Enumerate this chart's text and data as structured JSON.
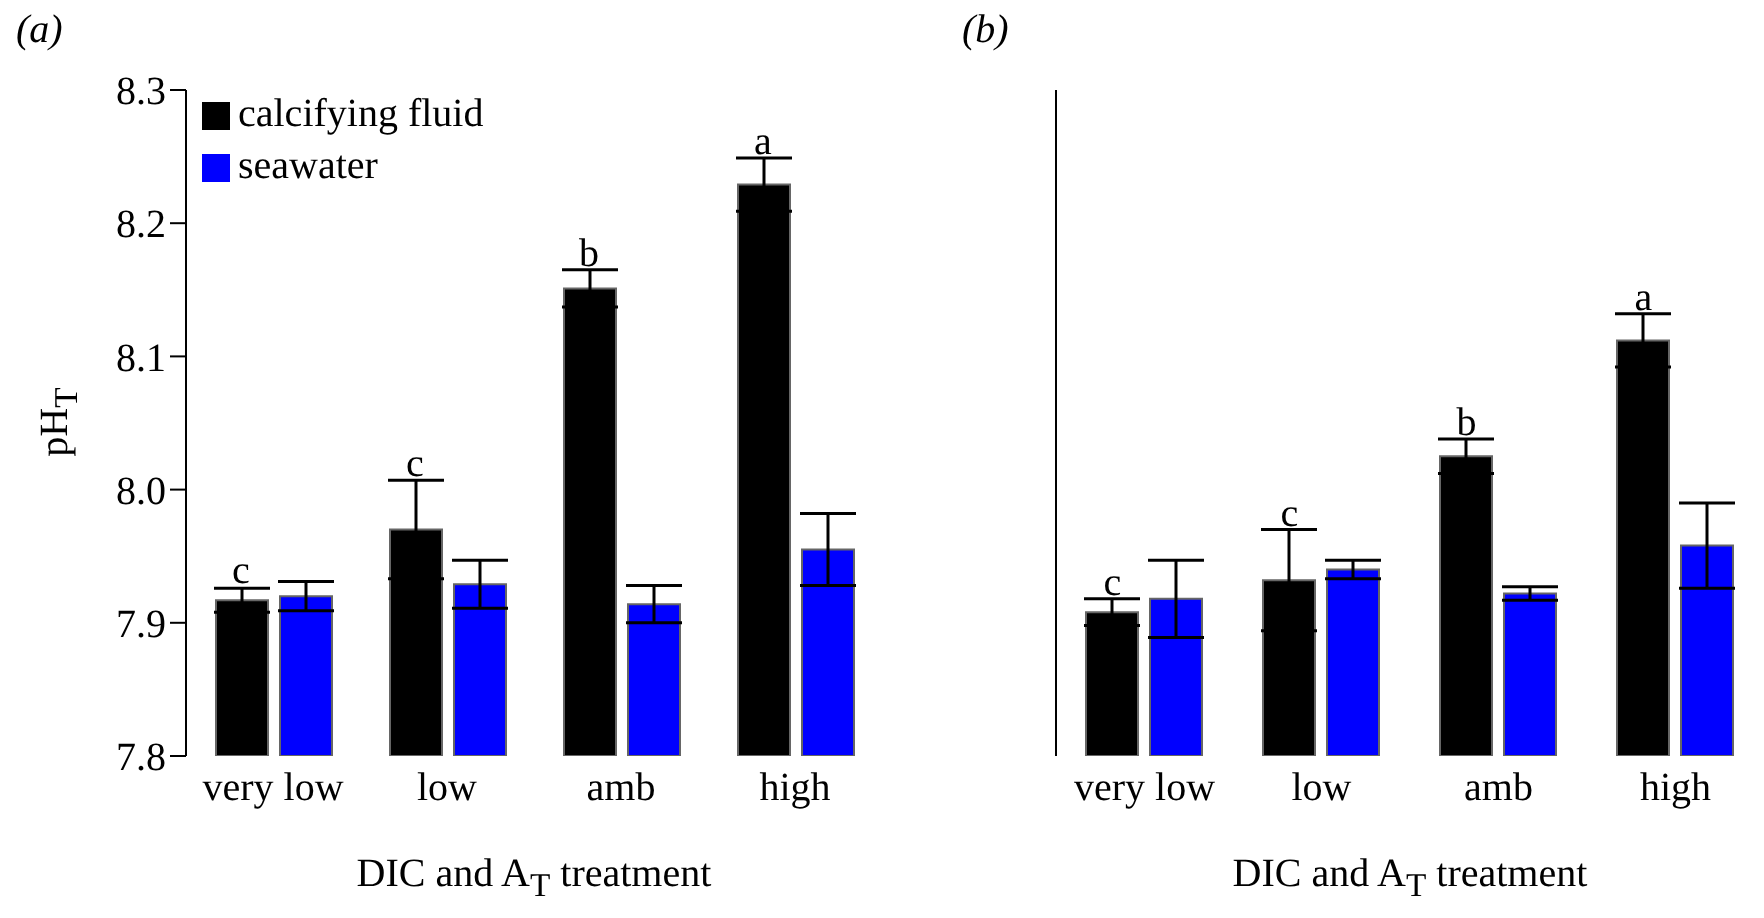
{
  "chart_data": [
    {
      "type": "bar",
      "title": "(a)",
      "xlabel": "DIC and A$_{T}$ treatment",
      "ylabel": "pH$_{T}$",
      "categories": [
        "very low",
        "low",
        "amb",
        "high"
      ],
      "series": [
        {
          "name": "calcifying fluid",
          "color": "#000000",
          "values": [
            7.917,
            7.97,
            8.151,
            8.229
          ],
          "errors": [
            0.009,
            0.037,
            0.014,
            0.02
          ]
        },
        {
          "name": "seawater",
          "color": "#0000ff",
          "values": [
            7.92,
            7.929,
            7.914,
            7.955
          ],
          "errors": [
            0.011,
            0.018,
            0.014,
            0.027
          ]
        }
      ],
      "ylim": [
        7.8,
        8.3
      ],
      "yticks": [
        7.8,
        7.9,
        {
          "value": 8,
          "label": "8.0"
        },
        8.1,
        8.2,
        8.3
      ],
      "annotations": [
        {
          "text": "c",
          "x": "very low",
          "y": 7.93
        },
        {
          "text": "c",
          "x": "low",
          "y": 8.01
        },
        {
          "text": "b",
          "x": "amb",
          "y": 8.168
        },
        {
          "text": "a",
          "x": "high",
          "y": 8.252
        }
      ],
      "grid": false,
      "legend": "top left"
    },
    {
      "type": "bar",
      "title": "(b)",
      "xlabel": "DIC and A$_{T}$ treatment",
      "categories": [
        "very low",
        "low",
        "amb",
        "high"
      ],
      "series": [
        {
          "color": "#000000",
          "values": [
            7.908,
            7.932,
            8.025,
            8.112
          ],
          "errors": [
            0.01,
            0.038,
            0.013,
            0.02
          ]
        },
        {
          "color": "#0000ff",
          "values": [
            7.918,
            7.94,
            7.922,
            7.958
          ],
          "errors": [
            0.029,
            0.007,
            0.005,
            0.032
          ]
        }
      ],
      "ylim": [
        7.8,
        8.3
      ],
      "yticks": [
        7.8,
        7.9,
        8,
        8.1,
        8.2,
        8.3
      ],
      "tick_labels": "x",
      "annotations": [
        {
          "text": "c",
          "x": "very low",
          "y": 7.921
        },
        {
          "text": "c",
          "x": "low",
          "y": 7.973
        },
        {
          "text": "b",
          "x": "amb",
          "y": 8.041
        },
        {
          "text": "a",
          "x": "high",
          "y": 8.135
        }
      ],
      "grid": false,
      "legend": false
    }
  ]
}
